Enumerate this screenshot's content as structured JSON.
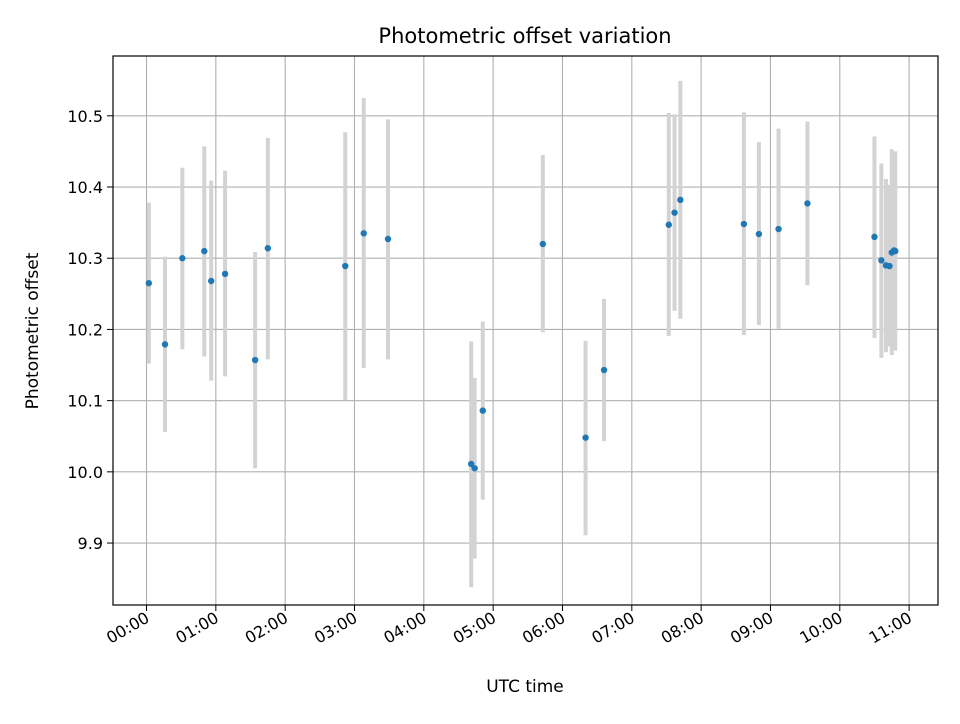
{
  "chart_data": {
    "type": "scatter",
    "title": "Photometric offset variation",
    "xlabel": "UTC time",
    "ylabel": "Photometric offset",
    "xlim": [
      "-00:29",
      "11:25"
    ],
    "ylim": [
      9.813,
      10.584
    ],
    "grid": true,
    "x_ticks": [
      "00:00",
      "01:00",
      "02:00",
      "03:00",
      "04:00",
      "05:00",
      "06:00",
      "07:00",
      "08:00",
      "09:00",
      "10:00",
      "11:00"
    ],
    "y_ticks": [
      "9.9",
      "10.0",
      "10.1",
      "10.2",
      "10.3",
      "10.4",
      "10.5"
    ],
    "marker_color": "#1f77b4",
    "errorbar_color": "#d3d3d3",
    "points": [
      {
        "x": "00:02",
        "y": 10.265,
        "ylow": 10.152,
        "yhigh": 10.378
      },
      {
        "x": "00:16",
        "y": 10.179,
        "ylow": 10.056,
        "yhigh": 10.302
      },
      {
        "x": "00:31",
        "y": 10.3,
        "ylow": 10.172,
        "yhigh": 10.427
      },
      {
        "x": "00:50",
        "y": 10.31,
        "ylow": 10.162,
        "yhigh": 10.457
      },
      {
        "x": "00:56",
        "y": 10.268,
        "ylow": 10.128,
        "yhigh": 10.409
      },
      {
        "x": "01:08",
        "y": 10.278,
        "ylow": 10.134,
        "yhigh": 10.423
      },
      {
        "x": "01:34",
        "y": 10.157,
        "ylow": 10.005,
        "yhigh": 10.309
      },
      {
        "x": "01:45",
        "y": 10.314,
        "ylow": 10.158,
        "yhigh": 10.469
      },
      {
        "x": "02:52",
        "y": 10.289,
        "ylow": 10.101,
        "yhigh": 10.477
      },
      {
        "x": "03:08",
        "y": 10.335,
        "ylow": 10.146,
        "yhigh": 10.525
      },
      {
        "x": "03:29",
        "y": 10.327,
        "ylow": 10.158,
        "yhigh": 10.495
      },
      {
        "x": "04:41",
        "y": 10.011,
        "ylow": 9.838,
        "yhigh": 10.183
      },
      {
        "x": "04:44",
        "y": 10.005,
        "ylow": 9.878,
        "yhigh": 10.132
      },
      {
        "x": "04:51",
        "y": 10.086,
        "ylow": 9.961,
        "yhigh": 10.211
      },
      {
        "x": "05:43",
        "y": 10.32,
        "ylow": 10.196,
        "yhigh": 10.445
      },
      {
        "x": "06:20",
        "y": 10.048,
        "ylow": 9.911,
        "yhigh": 10.184
      },
      {
        "x": "06:36",
        "y": 10.143,
        "ylow": 10.043,
        "yhigh": 10.243
      },
      {
        "x": "07:32",
        "y": 10.347,
        "ylow": 10.191,
        "yhigh": 10.504
      },
      {
        "x": "07:37",
        "y": 10.364,
        "ylow": 10.226,
        "yhigh": 10.502
      },
      {
        "x": "07:42",
        "y": 10.382,
        "ylow": 10.215,
        "yhigh": 10.549
      },
      {
        "x": "08:37",
        "y": 10.348,
        "ylow": 10.192,
        "yhigh": 10.505
      },
      {
        "x": "08:50",
        "y": 10.334,
        "ylow": 10.206,
        "yhigh": 10.463
      },
      {
        "x": "09:07",
        "y": 10.341,
        "ylow": 10.201,
        "yhigh": 10.482
      },
      {
        "x": "09:32",
        "y": 10.377,
        "ylow": 10.262,
        "yhigh": 10.492
      },
      {
        "x": "10:30",
        "y": 10.33,
        "ylow": 10.188,
        "yhigh": 10.471
      },
      {
        "x": "10:36",
        "y": 10.297,
        "ylow": 10.16,
        "yhigh": 10.433
      },
      {
        "x": "10:40",
        "y": 10.29,
        "ylow": 10.168,
        "yhigh": 10.411
      },
      {
        "x": "10:43",
        "y": 10.289,
        "ylow": 10.176,
        "yhigh": 10.403
      },
      {
        "x": "10:45",
        "y": 10.308,
        "ylow": 10.164,
        "yhigh": 10.453
      },
      {
        "x": "10:47",
        "y": 10.311,
        "ylow": 10.172,
        "yhigh": 10.447
      },
      {
        "x": "10:48",
        "y": 10.31,
        "ylow": 10.17,
        "yhigh": 10.45
      }
    ]
  }
}
